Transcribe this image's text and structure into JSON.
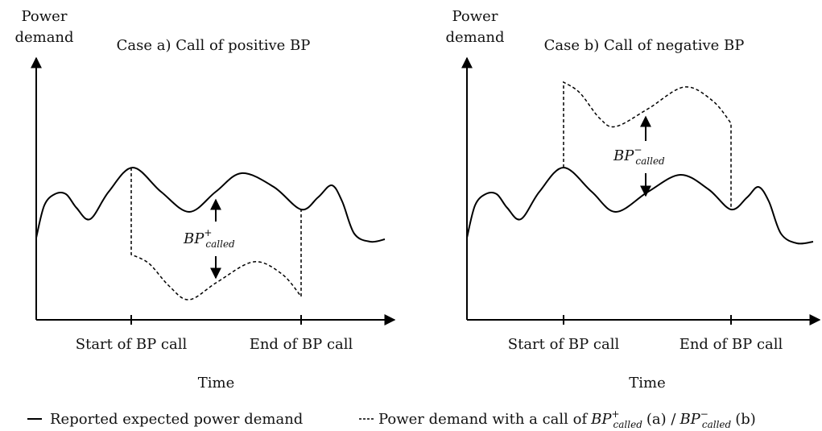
{
  "panels": [
    {
      "y_label": [
        "Power",
        "demand"
      ],
      "title": "Case a) Call of positive BP",
      "start_label": "Start of BP call",
      "end_label": "End of BP call",
      "x_label": "Time",
      "bp": {
        "base": "BP",
        "sup": "+",
        "sub": "called"
      }
    },
    {
      "y_label": [
        "Power",
        "demand"
      ],
      "title": "Case b) Call of negative BP",
      "start_label": "Start of BP call",
      "end_label": "End of BP call",
      "x_label": "Time",
      "bp": {
        "base": "BP",
        "sup": "−",
        "sub": "called"
      }
    }
  ],
  "legend": {
    "solid": "Reported expected power demand",
    "dashed": {
      "text": "Power demand with a call of",
      "a": {
        "base": "BP",
        "sup": "+",
        "sub": "called"
      },
      "a_tag": "(a) /",
      "b": {
        "base": "BP",
        "sup": "−",
        "sub": "called"
      },
      "b_tag": "(b)"
    }
  }
}
